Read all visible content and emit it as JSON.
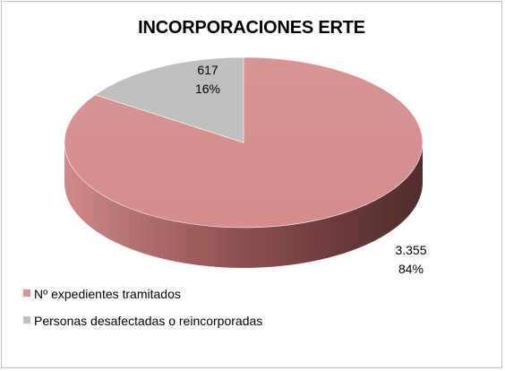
{
  "chart_data": {
    "type": "pie",
    "style": "3d",
    "title": "INCORPORACIONES ERTE",
    "categories": [
      "Nº expedientes tramitados",
      "Personas desafectadas o reincorporadas"
    ],
    "values": [
      3355,
      617
    ],
    "value_labels": [
      "3.355",
      "617"
    ],
    "percent_labels": [
      "84%",
      "16%"
    ],
    "colors": [
      "#d99594",
      "#bfbfbf"
    ],
    "legend_position": "bottom-left"
  }
}
